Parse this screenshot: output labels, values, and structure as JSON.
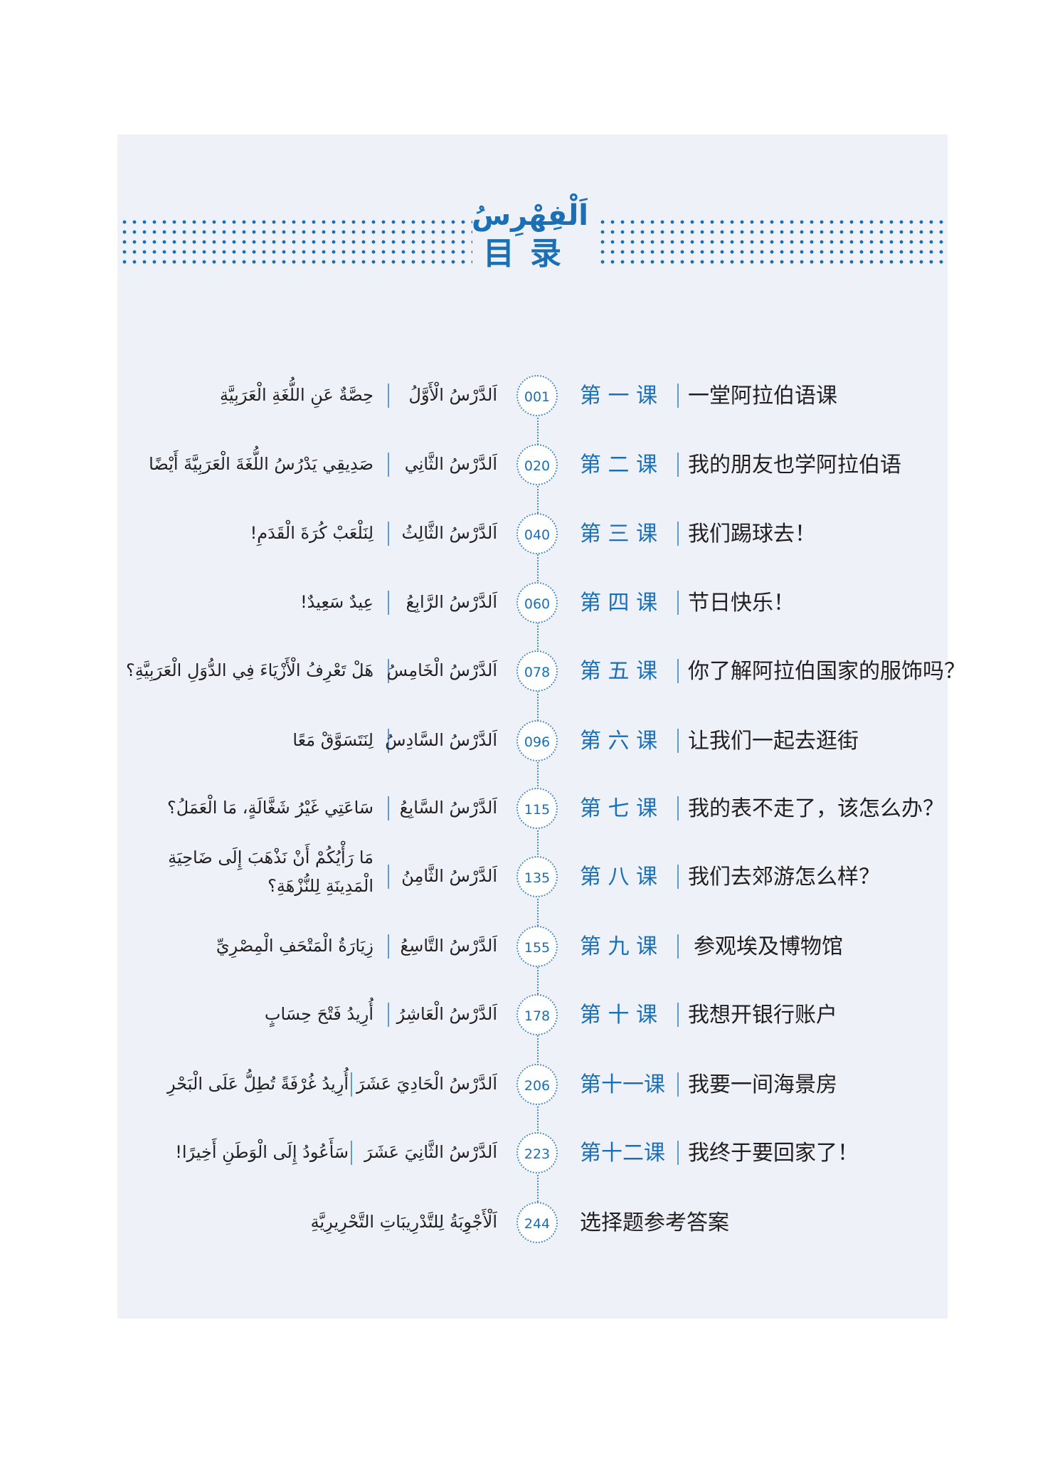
{
  "header": {
    "title_ar": "اَلْفِهْرِسُ",
    "title_cn": "目录"
  },
  "colors": {
    "accent": "#1a6fb5",
    "panel_bg": "#eef2f8",
    "text": "#231f20"
  },
  "lessons": [
    {
      "page": "001",
      "cn_label": "第 一 课",
      "cn_title": "一堂阿拉伯语课",
      "ar_label": "اَلدَّرْسُ الْأَوَّلُ",
      "ar_title": "حِصَّةٌ عَنِ اللُّغَةِ الْعَرَبِيَّةِ"
    },
    {
      "page": "020",
      "cn_label": "第 二 课",
      "cn_title": "我的朋友也学阿拉伯语",
      "ar_label": "اَلدَّرْسُ الثَّانِي",
      "ar_title": "صَدِيقِي يَدْرُسُ اللُّغَةَ الْعَرَبِيَّةَ أَيْضًا"
    },
    {
      "page": "040",
      "cn_label": "第 三 课",
      "cn_title": "我们踢球去！",
      "ar_label": "اَلدَّرْسُ الثَّالِثُ",
      "ar_title": "لِنَلْعَبْ كُرَةَ الْقَدَمِ!"
    },
    {
      "page": "060",
      "cn_label": "第 四 课",
      "cn_title": "节日快乐！",
      "ar_label": "اَلدَّرْسُ الرَّابِعُ",
      "ar_title": "عِيدٌ سَعِيدٌ!"
    },
    {
      "page": "078",
      "cn_label": "第 五 课",
      "cn_title": "你了解阿拉伯国家的服饰吗？",
      "ar_label": "اَلدَّرْسُ الْخَامِسُ",
      "ar_title": "هَلْ تَعْرِفُ الْأَزْيَاءَ فِي الدُّوَلِ الْعَرَبِيَّةِ؟"
    },
    {
      "page": "096",
      "cn_label": "第 六 课",
      "cn_title": "让我们一起去逛街",
      "ar_label": "اَلدَّرْسُ السَّادِسُ",
      "ar_title": "لِنَتَسَوَّقْ مَعًا"
    },
    {
      "page": "115",
      "cn_label": "第 七 课",
      "cn_title": "我的表不走了，该怎么办？",
      "ar_label": "اَلدَّرْسُ السَّابِعُ",
      "ar_title": "سَاعَتِي غَيْرُ شَغَّالَةٍ، مَا الْعَمَلُ؟"
    },
    {
      "page": "135",
      "cn_label": "第 八 课",
      "cn_title": "我们去郊游怎么样？",
      "ar_label": "اَلدَّرْسُ الثَّامِنُ",
      "ar_title": "مَا رَأْيُكُمْ أَنْ نَذْهَبَ إِلَى ضَاحِيَةِ الْمَدِينَةِ لِلنُّزْهَةِ؟"
    },
    {
      "page": "155",
      "cn_label": "第 九 课",
      "cn_title": "参观埃及博物馆",
      "ar_label": "اَلدَّرْسُ التَّاسِعُ",
      "ar_title": "زِيَارَةُ الْمَتْحَفِ الْمِصْرِيِّ"
    },
    {
      "page": "178",
      "cn_label": "第 十 课",
      "cn_title": "我想开银行账户",
      "ar_label": "اَلدَّرْسُ الْعَاشِرُ",
      "ar_title": "أُرِيدُ فَتْحَ حِسَابٍ"
    },
    {
      "page": "206",
      "cn_label": "第十一课",
      "cn_title": "我要一间海景房",
      "ar_label": "اَلدَّرْسُ الْحَادِيَ عَشَرَ",
      "ar_title": "أُرِيدُ غُرْفَةً تُطِلُّ عَلَى الْبَحْرِ"
    },
    {
      "page": "223",
      "cn_label": "第十二课",
      "cn_title": "我终于要回家了！",
      "ar_label": "اَلدَّرْسُ الثَّانِيَ عَشَرَ",
      "ar_title": "سَأَعُودُ إِلَى الْوَطَنِ أَخِيرًا!"
    }
  ],
  "answers": {
    "page": "244",
    "cn": "选择题参考答案",
    "ar": "اَلْأَجْوِبَةُ لِلتَّدْرِيبَاتِ التَّحْرِيرِيَّةِ"
  }
}
